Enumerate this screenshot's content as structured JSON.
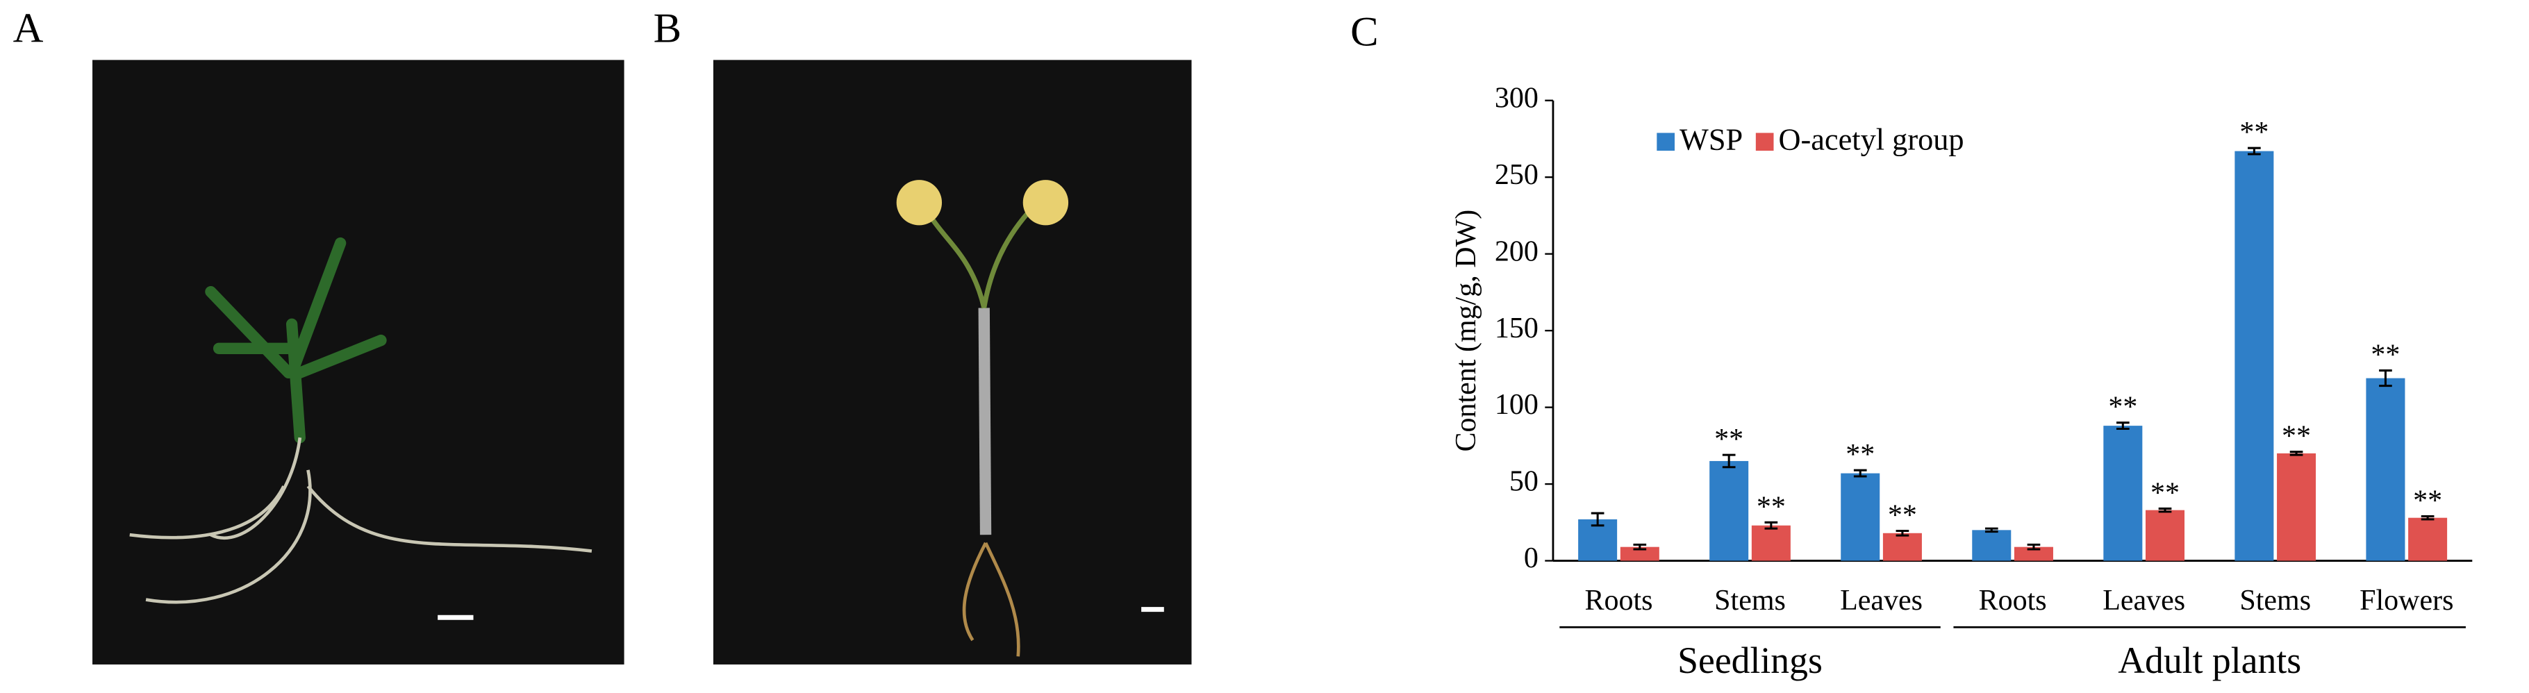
{
  "panel_labels": [
    "A",
    "B",
    "C"
  ],
  "chart_data": {
    "type": "bar",
    "y_label": "Content (mg/g, DW)",
    "groups": [
      {
        "name": "Seedlings",
        "categories": [
          "Roots",
          "Stems",
          "Leaves"
        ]
      },
      {
        "name": "Adult plants",
        "categories": [
          "Roots",
          "Leaves",
          "Stems",
          "Flowers"
        ]
      }
    ],
    "series": [
      {
        "name": "WSP",
        "color": "#2f7fc8",
        "values": [
          27,
          65,
          57,
          20,
          88,
          267,
          119
        ],
        "errors": [
          4,
          4,
          2,
          1,
          2,
          2,
          5
        ],
        "annotations": [
          null,
          "**",
          "**",
          null,
          "**",
          "**",
          "**"
        ]
      },
      {
        "name": "O-acetyl group",
        "color": "#e0524f",
        "values": [
          9,
          23,
          18,
          9,
          33,
          70,
          28
        ],
        "errors": [
          1.5,
          2,
          1.5,
          1.5,
          1,
          1,
          1
        ],
        "annotations": [
          null,
          "**",
          "**",
          null,
          "**",
          "**",
          "**"
        ]
      }
    ],
    "ylim": [
      0,
      300
    ],
    "yticks": [
      0,
      50,
      100,
      150,
      200,
      250,
      300
    ],
    "grid": false,
    "legend": "top-left"
  }
}
